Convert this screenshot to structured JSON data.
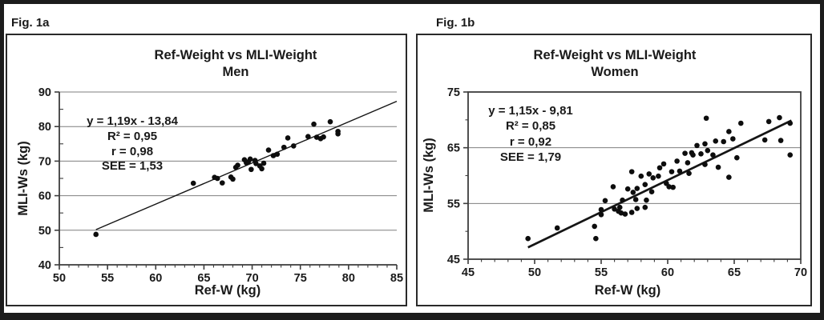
{
  "figure": {
    "panels": [
      {
        "fig_label": "Fig. 1a",
        "title_line1": "Ref-Weight vs MLI-Weight",
        "title_line2": "Men",
        "xlabel": "Ref-W (kg)",
        "ylabel": "MLI-Ws (kg)",
        "annotation": {
          "equation": "y = 1,19x - 13,84",
          "r_squared": "R² = 0,95",
          "r": "r = 0,98",
          "see": "SEE = 1,53"
        }
      },
      {
        "fig_label": "Fig. 1b",
        "title_line1": "Ref-Weight vs MLI-Weight",
        "title_line2": "Women",
        "xlabel": "Ref-W (kg)",
        "ylabel": "MLI-Ws (kg)",
        "annotation": {
          "equation": "y = 1,15x - 9,81",
          "r_squared": "R² = 0,85",
          "r": "r = 0,92",
          "see": "SEE = 1,79"
        }
      }
    ],
    "colors": {
      "marker": "#0d0d0d",
      "gridline": "#7f7f7f",
      "axis": "#3c3c3c",
      "trend": "#151515",
      "text": "#1a1a1a"
    }
  },
  "chart_data": [
    {
      "type": "scatter",
      "title": "Ref-Weight vs MLI-Weight",
      "subtitle": "Men",
      "xlabel": "Ref-W (kg)",
      "ylabel": "MLI-Ws (kg)",
      "xlim": [
        50,
        85
      ],
      "ylim": [
        40,
        90
      ],
      "x_tick_major": 5,
      "x_tick_minor": 1,
      "y_tick_major": 10,
      "y_tick_minor": 5,
      "grid": "horizontal-major",
      "frame": "axes",
      "legend": "none",
      "marker_radius": 3.3,
      "stats": {
        "equation": "y = 1,19x - 13,84",
        "R2": 0.95,
        "r": 0.98,
        "SEE": 1.53
      },
      "trendline": {
        "slope": 1.19,
        "intercept": -13.84,
        "x_start": 53.8,
        "x_end": 85,
        "stroke_width": 1.4
      },
      "points": [
        [
          53.8,
          48.8
        ],
        [
          63.9,
          63.6
        ],
        [
          66.1,
          65.3
        ],
        [
          66.4,
          65.0
        ],
        [
          66.9,
          63.7
        ],
        [
          67.8,
          65.4
        ],
        [
          68.0,
          64.8
        ],
        [
          68.3,
          68.2
        ],
        [
          68.5,
          68.8
        ],
        [
          69.2,
          70.4
        ],
        [
          69.4,
          69.5
        ],
        [
          69.6,
          69.8
        ],
        [
          69.8,
          70.6
        ],
        [
          69.9,
          67.6
        ],
        [
          70.3,
          70.2
        ],
        [
          70.4,
          69.3
        ],
        [
          70.8,
          68.6
        ],
        [
          71.0,
          67.8
        ],
        [
          71.2,
          69.4
        ],
        [
          71.7,
          73.2
        ],
        [
          72.2,
          71.6
        ],
        [
          72.6,
          72.0
        ],
        [
          73.3,
          74.0
        ],
        [
          73.7,
          76.7
        ],
        [
          74.3,
          74.4
        ],
        [
          75.8,
          77.1
        ],
        [
          76.4,
          80.7
        ],
        [
          76.7,
          76.9
        ],
        [
          77.1,
          76.5
        ],
        [
          77.4,
          77.0
        ],
        [
          78.1,
          81.4
        ],
        [
          78.9,
          78.6
        ],
        [
          78.9,
          77.9
        ]
      ]
    },
    {
      "type": "scatter",
      "title": "Ref-Weight vs MLI-Weight",
      "subtitle": "Women",
      "xlabel": "Ref-W (kg)",
      "ylabel": "MLI-Ws (kg)",
      "xlim": [
        45,
        70
      ],
      "ylim": [
        45,
        75
      ],
      "x_tick_major": 5,
      "x_tick_minor": 1,
      "y_tick_major": 10,
      "y_tick_minor": 5,
      "grid": "horizontal-major",
      "frame": "box",
      "legend": "none",
      "marker_radius": 3.3,
      "stats": {
        "equation": "y = 1,15x - 9,81",
        "R2": 0.85,
        "r": 0.92,
        "SEE": 1.79
      },
      "trendline": {
        "slope": 1.15,
        "intercept": -9.81,
        "x_start": 49.5,
        "x_end": 69.3,
        "stroke_width": 2.7
      },
      "points": [
        [
          49.5,
          48.7
        ],
        [
          51.7,
          50.6
        ],
        [
          54.5,
          50.9
        ],
        [
          54.6,
          48.7
        ],
        [
          55.0,
          53.9
        ],
        [
          55.0,
          53.0
        ],
        [
          55.3,
          55.5
        ],
        [
          55.9,
          58.0
        ],
        [
          56.0,
          54.0
        ],
        [
          56.3,
          53.6
        ],
        [
          56.4,
          54.3
        ],
        [
          56.5,
          53.3
        ],
        [
          56.6,
          55.6
        ],
        [
          56.8,
          53.1
        ],
        [
          57.0,
          57.6
        ],
        [
          57.3,
          53.4
        ],
        [
          57.3,
          60.7
        ],
        [
          57.4,
          57.0
        ],
        [
          57.6,
          55.7
        ],
        [
          57.7,
          54.1
        ],
        [
          57.7,
          57.7
        ],
        [
          58.0,
          59.9
        ],
        [
          58.3,
          54.3
        ],
        [
          58.3,
          58.4
        ],
        [
          58.4,
          55.6
        ],
        [
          58.6,
          60.3
        ],
        [
          58.8,
          57.1
        ],
        [
          58.9,
          59.6
        ],
        [
          59.3,
          59.9
        ],
        [
          59.4,
          61.4
        ],
        [
          59.7,
          62.1
        ],
        [
          59.9,
          58.6
        ],
        [
          60.1,
          58.0
        ],
        [
          60.4,
          57.9
        ],
        [
          60.3,
          60.7
        ],
        [
          60.7,
          62.6
        ],
        [
          60.9,
          60.8
        ],
        [
          61.3,
          64.0
        ],
        [
          61.5,
          62.3
        ],
        [
          61.6,
          60.4
        ],
        [
          61.8,
          64.1
        ],
        [
          61.9,
          63.7
        ],
        [
          62.2,
          65.4
        ],
        [
          62.5,
          63.9
        ],
        [
          62.8,
          65.7
        ],
        [
          62.8,
          62.0
        ],
        [
          62.9,
          70.3
        ],
        [
          63.0,
          64.5
        ],
        [
          63.4,
          63.7
        ],
        [
          63.6,
          66.2
        ],
        [
          63.8,
          61.5
        ],
        [
          64.2,
          66.1
        ],
        [
          64.6,
          67.9
        ],
        [
          64.6,
          59.7
        ],
        [
          64.9,
          66.6
        ],
        [
          65.2,
          63.2
        ],
        [
          65.5,
          69.4
        ],
        [
          67.3,
          66.4
        ],
        [
          67.6,
          69.7
        ],
        [
          68.4,
          70.4
        ],
        [
          68.5,
          66.3
        ],
        [
          69.2,
          69.4
        ],
        [
          69.2,
          63.7
        ]
      ]
    }
  ]
}
